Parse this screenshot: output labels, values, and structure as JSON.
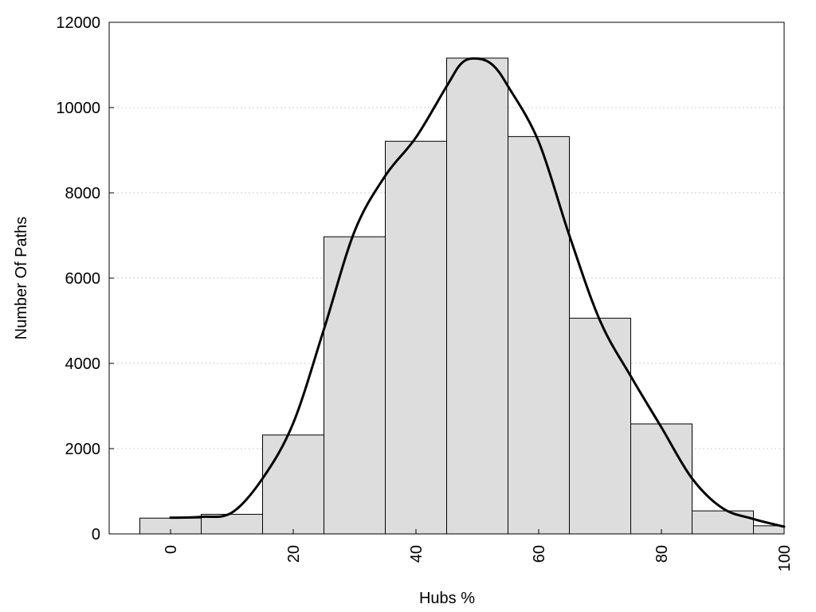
{
  "chart_data": {
    "type": "bar",
    "title": "",
    "xlabel": "Hubs %",
    "ylabel": "Number Of Paths",
    "x": [
      0,
      10,
      20,
      30,
      40,
      50,
      60,
      70,
      80,
      90,
      100
    ],
    "values": [
      370,
      460,
      2320,
      6970,
      9210,
      11160,
      9320,
      5060,
      2580,
      540,
      190
    ],
    "bin_width": 10,
    "xlim": [
      -10,
      100
    ],
    "ylim": [
      0,
      12000
    ],
    "xticks": [
      0,
      20,
      40,
      60,
      80,
      100
    ],
    "xtick_labels": [
      "0",
      "20",
      "40",
      "60",
      "80",
      "100"
    ],
    "yticks": [
      0,
      2000,
      4000,
      6000,
      8000,
      10000,
      12000
    ],
    "ytick_labels": [
      "0",
      "2000",
      "4000",
      "6000",
      "8000",
      "10000",
      "12000"
    ],
    "grid": "horizontal dotted",
    "legend": "none",
    "density_curve": {
      "x": [
        0,
        5,
        10,
        15,
        20,
        25,
        30,
        35,
        40,
        45,
        47.5,
        50,
        52.5,
        55,
        60,
        65,
        70,
        75,
        80,
        85,
        90,
        95,
        100
      ],
      "y": [
        380,
        400,
        500,
        1300,
        2600,
        4800,
        7100,
        8400,
        9300,
        10500,
        11050,
        11150,
        11000,
        10500,
        9200,
        7000,
        5000,
        3700,
        2500,
        1300,
        600,
        350,
        170
      ]
    },
    "colors": {
      "bar_fill": "#dddddd",
      "bar_stroke": "#000000",
      "curve": "#000000",
      "grid": "#cccccc"
    }
  }
}
